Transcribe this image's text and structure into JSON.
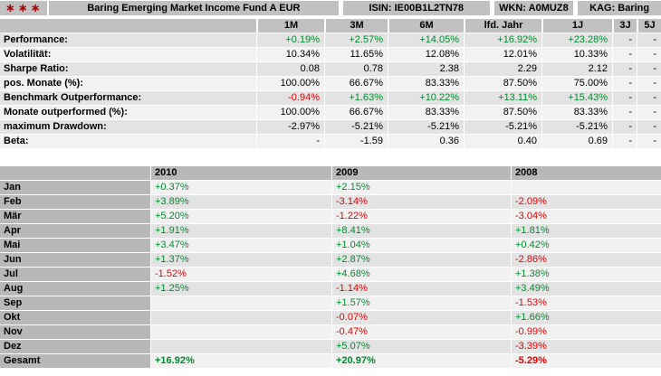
{
  "colors": {
    "positive": "#008a2e",
    "negative": "#e10000",
    "stars": "#aa0000"
  },
  "header": {
    "stars": "∗∗∗",
    "title": "Baring Emerging Market Income Fund A EUR",
    "isin": "ISIN: IE00B1L2TN78",
    "wkn": "WKN: A0MUZ8",
    "kag": "KAG: Baring"
  },
  "performance_table": {
    "columns": [
      "1M",
      "3M",
      "6M",
      "lfd. Jahr",
      "1J",
      "3J",
      "5J"
    ],
    "rows": [
      {
        "label": "Performance:",
        "colored": true,
        "values": [
          "+0.19%",
          "+2.57%",
          "+14.05%",
          "+16.92%",
          "+23.28%",
          "-",
          "-"
        ]
      },
      {
        "label": "Volatilität:",
        "colored": false,
        "values": [
          "10.34%",
          "11.65%",
          "12.08%",
          "12.01%",
          "10.33%",
          "-",
          "-"
        ]
      },
      {
        "label": "Sharpe Ratio:",
        "colored": false,
        "values": [
          "0.08",
          "0.78",
          "2.38",
          "2.29",
          "2.12",
          "-",
          "-"
        ]
      },
      {
        "label": "pos. Monate (%):",
        "colored": false,
        "values": [
          "100.00%",
          "66.67%",
          "83.33%",
          "87.50%",
          "75.00%",
          "-",
          "-"
        ]
      },
      {
        "label": "Benchmark Outperformance:",
        "colored": true,
        "values": [
          "-0.94%",
          "+1.63%",
          "+10.22%",
          "+13.11%",
          "+15.43%",
          "-",
          "-"
        ]
      },
      {
        "label": "Monate outperformed (%):",
        "colored": false,
        "values": [
          "100.00%",
          "66.67%",
          "83.33%",
          "87.50%",
          "83.33%",
          "-",
          "-"
        ]
      },
      {
        "label": "maximum Drawdown:",
        "colored": false,
        "values": [
          "-2.97%",
          "-5.21%",
          "-5.21%",
          "-5.21%",
          "-5.21%",
          "-",
          "-"
        ]
      },
      {
        "label": "Beta:",
        "colored": false,
        "values": [
          "-",
          "-1.59",
          "0.36",
          "0.40",
          "0.69",
          "-",
          "-"
        ]
      }
    ]
  },
  "monthly_table": {
    "year_columns": [
      "2010",
      "2009",
      "2008"
    ],
    "rows": [
      {
        "label": "Jan",
        "values": [
          "+0.37%",
          "+2.15%",
          ""
        ]
      },
      {
        "label": "Feb",
        "values": [
          "+3.89%",
          "-3.14%",
          "-2.09%"
        ]
      },
      {
        "label": "Mär",
        "values": [
          "+5.20%",
          "-1.22%",
          "-3.04%"
        ]
      },
      {
        "label": "Apr",
        "values": [
          "+1.91%",
          "+8.41%",
          "+1.81%"
        ]
      },
      {
        "label": "Mai",
        "values": [
          "+3.47%",
          "+1.04%",
          "+0.42%"
        ]
      },
      {
        "label": "Jun",
        "values": [
          "+1.37%",
          "+2.87%",
          "-2.86%"
        ]
      },
      {
        "label": "Jul",
        "values": [
          "-1.52%",
          "+4.68%",
          "+1.38%"
        ]
      },
      {
        "label": "Aug",
        "values": [
          "+1.25%",
          "-1.14%",
          "+3.49%"
        ]
      },
      {
        "label": "Sep",
        "values": [
          "",
          "+1.57%",
          "-1.53%"
        ]
      },
      {
        "label": "Okt",
        "values": [
          "",
          "-0.07%",
          "+1.66%"
        ]
      },
      {
        "label": "Nov",
        "values": [
          "",
          "-0.47%",
          "-0.99%"
        ]
      },
      {
        "label": "Dez",
        "values": [
          "",
          "+5.07%",
          "-3.39%"
        ]
      }
    ],
    "total_row": {
      "label": "Gesamt",
      "values": [
        "+16.92%",
        "+20.97%",
        "-5.29%"
      ]
    }
  }
}
